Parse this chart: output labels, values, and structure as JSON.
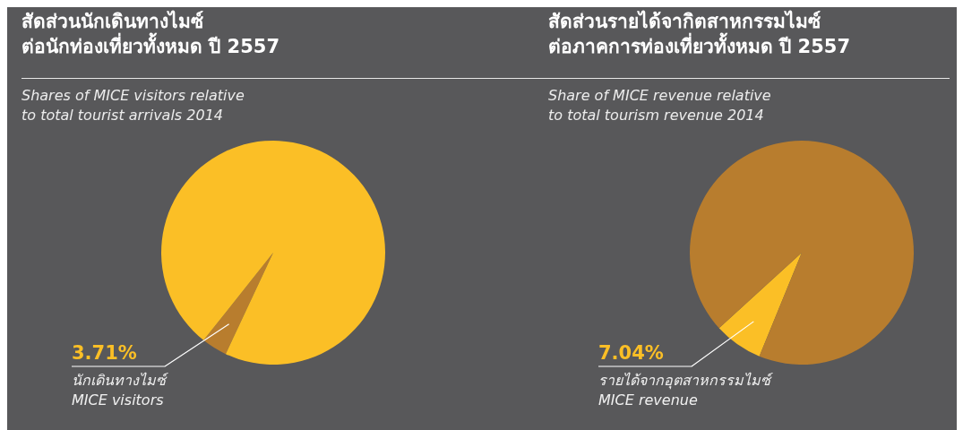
{
  "chart_data": [
    {
      "type": "pie",
      "title": "สัดส่วนนักเดินทางไมซ์\nต่อนักท่องเที่ยวทั้งหมด ปี 2557",
      "subtitle": "Shares of MICE visitors relative\nto total tourist arrivals 2014",
      "categories": [
        "นักเดินทางไมซ์\nMICE visitors",
        null
      ],
      "values": [
        3.71,
        96.29
      ],
      "colors": [
        "#b87d2e",
        "#fbbf26"
      ],
      "value_labels": [
        "3.71%",
        null
      ]
    },
    {
      "type": "pie",
      "title": "สัดส่วนรายได้จากิตสาหกรรมไมซ์\nต่อภาคการท่องเที่ยวทั้งหมด ปี 2557",
      "subtitle": "Share of MICE revenue relative\nto total tourism revenue 2014",
      "categories": [
        "รายได้จากอุตสาหกรรมไมซ์\nMICE revenue",
        null
      ],
      "values": [
        7.04,
        92.96
      ],
      "colors": [
        "#fbbf26",
        "#b87d2e"
      ],
      "value_labels": [
        "7.04%",
        null
      ]
    }
  ]
}
